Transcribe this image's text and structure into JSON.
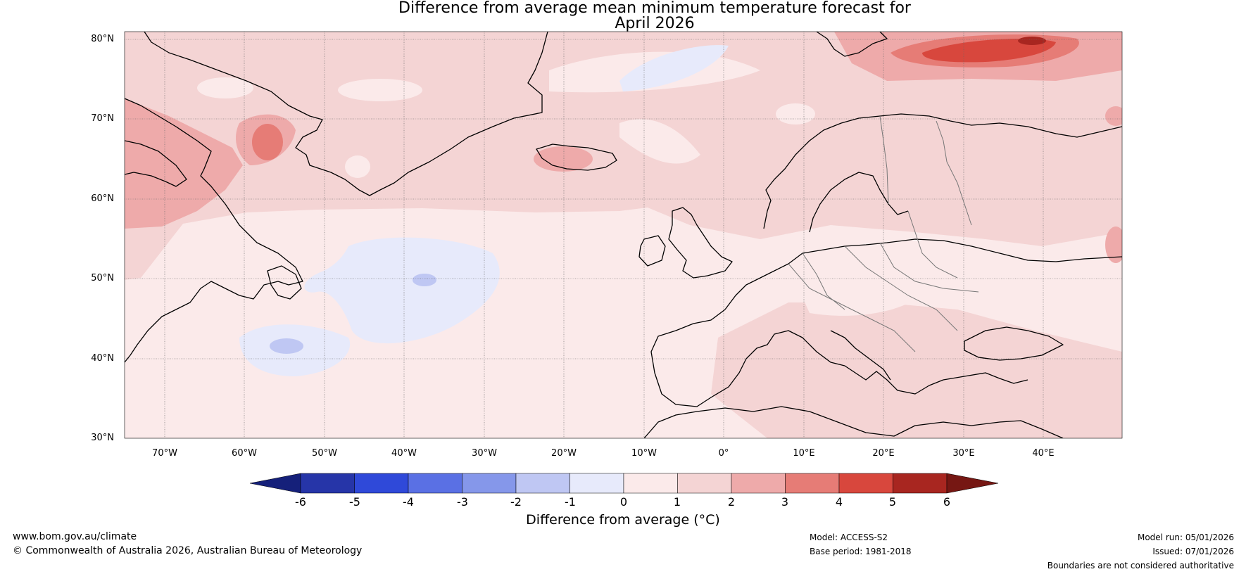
{
  "title": {
    "line1": "Difference from average mean minimum temperature forecast for",
    "line2": "April 2026"
  },
  "map": {
    "latitude_labels": [
      "80°N",
      "70°N",
      "60°N",
      "50°N",
      "40°N",
      "30°N"
    ],
    "longitude_labels": [
      "70°W",
      "60°W",
      "50°W",
      "40°W",
      "30°W",
      "20°W",
      "10°W",
      "0°",
      "10°E",
      "20°E",
      "30°E",
      "40°E"
    ],
    "lat_range": [
      30,
      81
    ],
    "lon_range": [
      -75,
      50
    ]
  },
  "colorbar": {
    "ticks": [
      "-6",
      "-5",
      "-4",
      "-3",
      "-2",
      "-1",
      "0",
      "1",
      "2",
      "3",
      "4",
      "5",
      "6"
    ],
    "label": "Difference from average (°C)",
    "colors": [
      "#15207a",
      "#2635a8",
      "#2f49d9",
      "#5a70e4",
      "#8597ea",
      "#bfc7f3",
      "#e7eafb",
      "#fbeaea",
      "#f4d4d4",
      "#eeaaaa",
      "#e67c76",
      "#d8473d",
      "#a82620",
      "#761713"
    ]
  },
  "footer": {
    "website": "www.bom.gov.au/climate",
    "copyright": "© Commonwealth of Australia 2026, Australian Bureau of Meteorology",
    "model": "Model: ACCESS-S2",
    "base_period": "Base period: 1981-2018",
    "model_run": "Model run: 05/01/2026",
    "issued": "Issued: 07/01/2026",
    "disclaimer": "Boundaries are not considered authoritative"
  }
}
